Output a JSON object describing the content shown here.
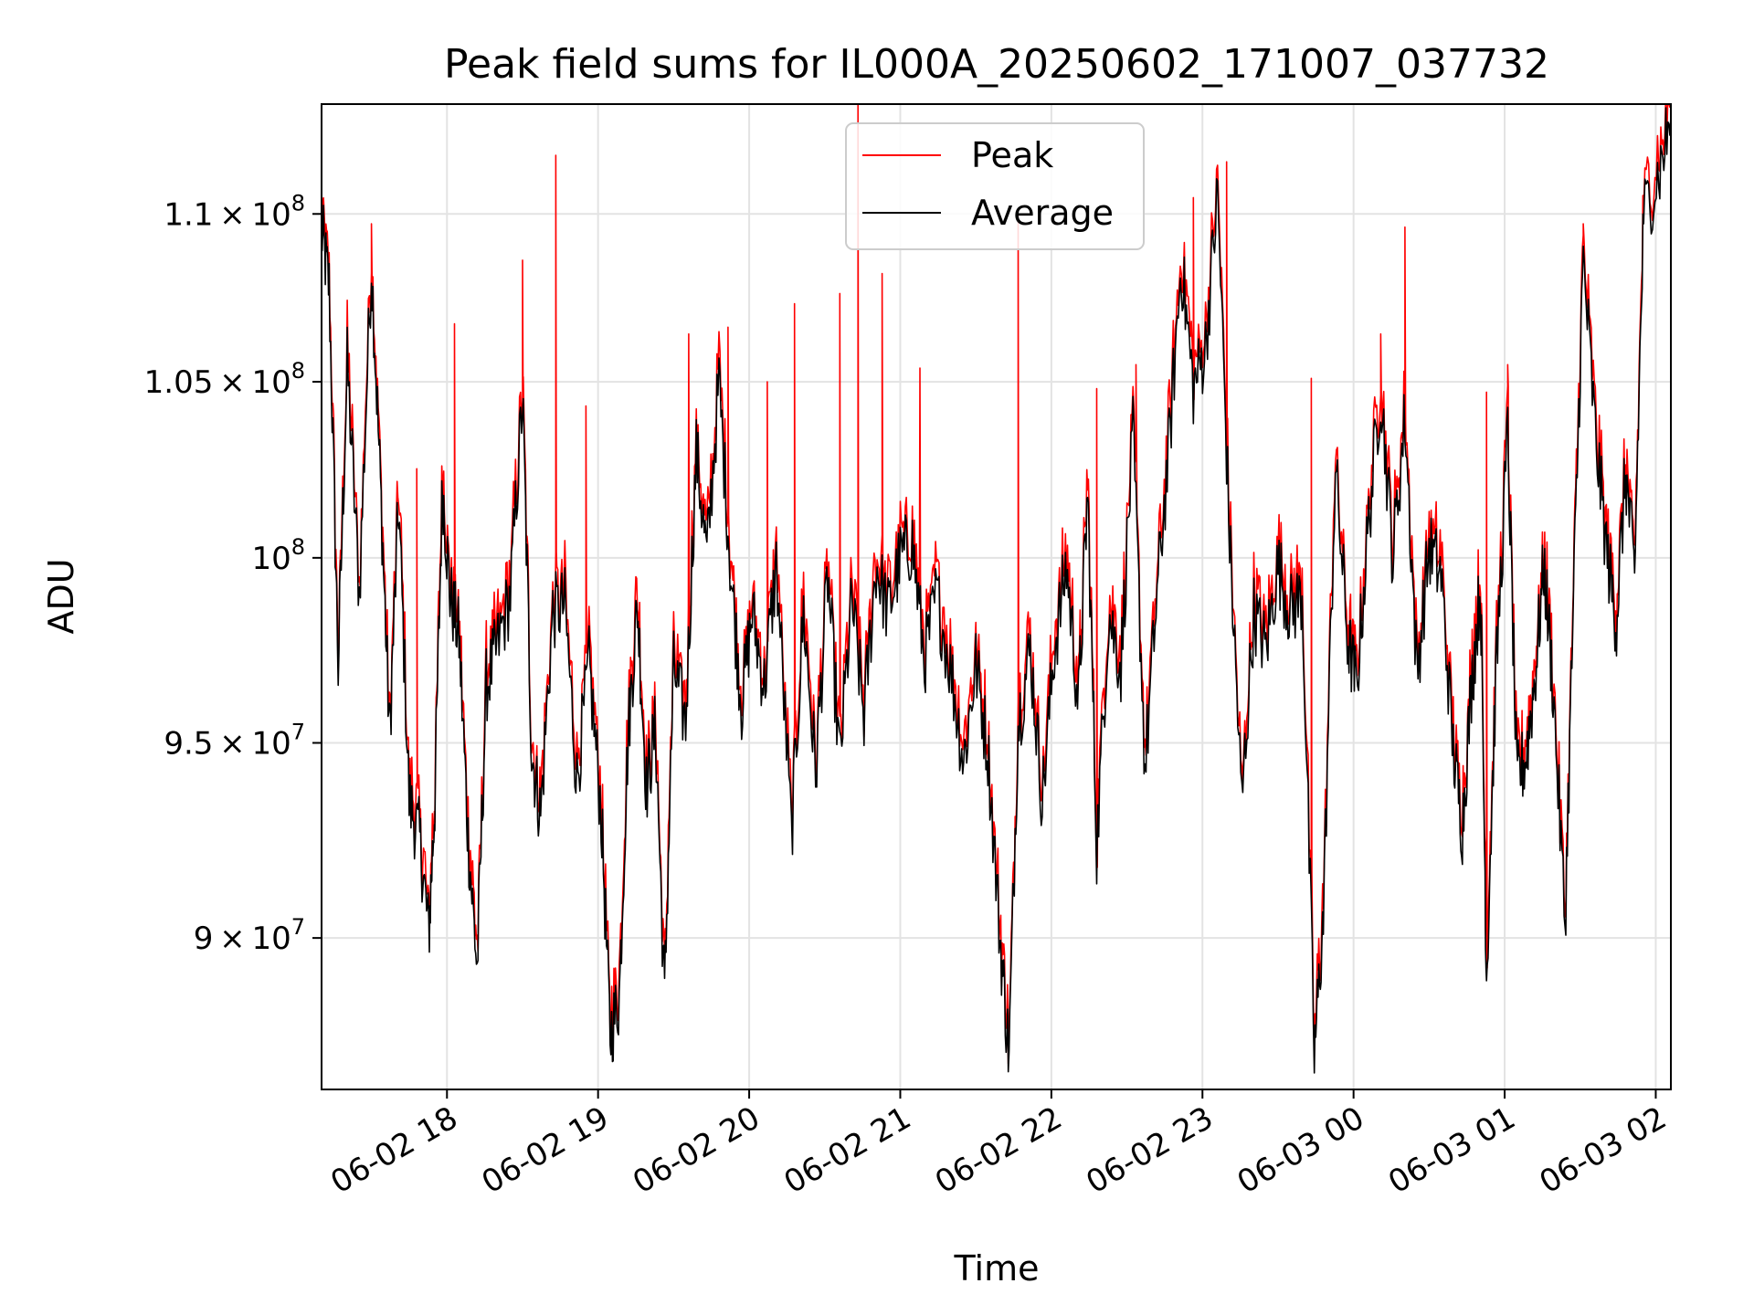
{
  "chart_data": {
    "type": "line",
    "title": "Peak field sums for IL000A_20250602_171007_037732",
    "xlabel": "Time",
    "ylabel": "ADU",
    "x_ticks": [
      "06-02 18",
      "06-02 19",
      "06-02 20",
      "06-02 21",
      "06-02 22",
      "06-02 23",
      "06-03 00",
      "06-03 01",
      "06-03 02"
    ],
    "y_ticks": [
      {
        "value": 90000000,
        "mantissa": "9",
        "exp": "7",
        "times": true
      },
      {
        "value": 95000000,
        "mantissa": "9.5",
        "exp": "7",
        "times": true
      },
      {
        "value": 100000000,
        "mantissa": "10",
        "exp": "8",
        "times": false
      },
      {
        "value": 105000000,
        "mantissa": "1.05",
        "exp": "8",
        "times": true
      },
      {
        "value": 110000000,
        "mantissa": "1.1",
        "exp": "8",
        "times": true
      }
    ],
    "x_range_hours": [
      17.17,
      26.1
    ],
    "ylim": [
      86300000,
      113400000
    ],
    "y_scale": "log",
    "grid": true,
    "legend_position": "top-center",
    "series": [
      {
        "name": "Peak",
        "color": "#ff0000"
      },
      {
        "name": "Average",
        "color": "#000000"
      }
    ],
    "average_keypoints": [
      [
        17.17,
        109500000
      ],
      [
        17.22,
        107800000
      ],
      [
        17.28,
        97000000
      ],
      [
        17.34,
        105500000
      ],
      [
        17.42,
        99000000
      ],
      [
        17.5,
        108500000
      ],
      [
        17.56,
        102000000
      ],
      [
        17.62,
        95200000
      ],
      [
        17.68,
        101500000
      ],
      [
        17.75,
        93500000
      ],
      [
        17.82,
        92500000
      ],
      [
        17.88,
        90100000
      ],
      [
        17.92,
        93500000
      ],
      [
        17.97,
        102000000
      ],
      [
        18.02,
        99000000
      ],
      [
        18.08,
        97800000
      ],
      [
        18.14,
        92500000
      ],
      [
        18.2,
        89200000
      ],
      [
        18.26,
        96500000
      ],
      [
        18.33,
        97500000
      ],
      [
        18.42,
        99000000
      ],
      [
        18.5,
        104500000
      ],
      [
        18.56,
        94800000
      ],
      [
        18.62,
        93100000
      ],
      [
        18.7,
        98500000
      ],
      [
        18.78,
        98700000
      ],
      [
        18.86,
        94000000
      ],
      [
        18.94,
        97100000
      ],
      [
        19.02,
        93200000
      ],
      [
        19.08,
        87600000
      ],
      [
        19.14,
        88500000
      ],
      [
        19.2,
        95300000
      ],
      [
        19.26,
        98700000
      ],
      [
        19.32,
        93800000
      ],
      [
        19.38,
        95400000
      ],
      [
        19.44,
        88500000
      ],
      [
        19.5,
        97000000
      ],
      [
        19.58,
        95500000
      ],
      [
        19.65,
        103000000
      ],
      [
        19.72,
        100000000
      ],
      [
        19.8,
        105000000
      ],
      [
        19.88,
        99500000
      ],
      [
        19.95,
        96000000
      ],
      [
        20.02,
        98500000
      ],
      [
        20.1,
        96500000
      ],
      [
        20.18,
        99800000
      ],
      [
        20.28,
        92600000
      ],
      [
        20.36,
        98500000
      ],
      [
        20.44,
        94200000
      ],
      [
        20.52,
        99500000
      ],
      [
        20.6,
        94500000
      ],
      [
        20.68,
        98800000
      ],
      [
        20.76,
        95700000
      ],
      [
        20.84,
        99800000
      ],
      [
        20.92,
        98500000
      ],
      [
        21.0,
        100000000
      ],
      [
        21.08,
        100400000
      ],
      [
        21.16,
        97200000
      ],
      [
        21.24,
        99000000
      ],
      [
        21.34,
        96800000
      ],
      [
        21.42,
        94500000
      ],
      [
        21.5,
        97100000
      ],
      [
        21.58,
        94800000
      ],
      [
        21.66,
        90000000
      ],
      [
        21.72,
        87100000
      ],
      [
        21.78,
        95500000
      ],
      [
        21.86,
        97500000
      ],
      [
        21.94,
        93500000
      ],
      [
        22.02,
        97500000
      ],
      [
        22.1,
        99800000
      ],
      [
        22.18,
        96000000
      ],
      [
        22.24,
        101800000
      ],
      [
        22.3,
        92300000
      ],
      [
        22.38,
        98500000
      ],
      [
        22.46,
        97000000
      ],
      [
        22.54,
        103500000
      ],
      [
        22.62,
        94300000
      ],
      [
        22.7,
        99000000
      ],
      [
        22.78,
        103200000
      ],
      [
        22.86,
        108500000
      ],
      [
        22.94,
        104800000
      ],
      [
        23.02,
        106000000
      ],
      [
        23.1,
        110600000
      ],
      [
        23.18,
        100500000
      ],
      [
        23.26,
        93400000
      ],
      [
        23.34,
        98500000
      ],
      [
        23.42,
        97500000
      ],
      [
        23.5,
        99800000
      ],
      [
        23.58,
        98500000
      ],
      [
        23.66,
        99000000
      ],
      [
        23.74,
        87100000
      ],
      [
        23.8,
        90500000
      ],
      [
        23.88,
        102500000
      ],
      [
        23.96,
        97800000
      ],
      [
        24.02,
        96500000
      ],
      [
        24.1,
        101000000
      ],
      [
        24.18,
        104800000
      ],
      [
        24.26,
        100000000
      ],
      [
        24.34,
        104000000
      ],
      [
        24.42,
        96800000
      ],
      [
        24.5,
        100300000
      ],
      [
        24.58,
        99500000
      ],
      [
        24.66,
        94800000
      ],
      [
        24.72,
        92800000
      ],
      [
        24.78,
        96500000
      ],
      [
        24.84,
        99200000
      ],
      [
        24.88,
        89000000
      ],
      [
        24.94,
        96500000
      ],
      [
        25.02,
        103500000
      ],
      [
        25.08,
        94000000
      ],
      [
        25.14,
        94600000
      ],
      [
        25.2,
        96700000
      ],
      [
        25.26,
        99800000
      ],
      [
        25.32,
        96500000
      ],
      [
        25.4,
        90300000
      ],
      [
        25.46,
        99500000
      ],
      [
        25.52,
        108600000
      ],
      [
        25.6,
        103500000
      ],
      [
        25.68,
        100000000
      ],
      [
        25.74,
        98200000
      ],
      [
        25.8,
        102400000
      ],
      [
        25.86,
        99500000
      ],
      [
        25.92,
        110000000
      ],
      [
        26.02,
        111200000
      ],
      [
        26.1,
        113000000
      ]
    ],
    "peak_spikes": [
      [
        17.5,
        109700000
      ],
      [
        17.8,
        102500000
      ],
      [
        18.05,
        106700000
      ],
      [
        18.5,
        108600000
      ],
      [
        18.72,
        111800000
      ],
      [
        18.92,
        104300000
      ],
      [
        19.6,
        106400000
      ],
      [
        19.86,
        106600000
      ],
      [
        20.12,
        105000000
      ],
      [
        20.3,
        107300000
      ],
      [
        20.6,
        107600000
      ],
      [
        20.72,
        113400000
      ],
      [
        20.88,
        108200000
      ],
      [
        21.13,
        105400000
      ],
      [
        21.78,
        110000000
      ],
      [
        22.3,
        104800000
      ],
      [
        22.56,
        105500000
      ],
      [
        22.94,
        110500000
      ],
      [
        23.16,
        111600000
      ],
      [
        23.72,
        105100000
      ],
      [
        24.18,
        106400000
      ],
      [
        24.34,
        109600000
      ],
      [
        24.88,
        104700000
      ],
      [
        25.02,
        105500000
      ],
      [
        25.52,
        109700000
      ]
    ]
  }
}
